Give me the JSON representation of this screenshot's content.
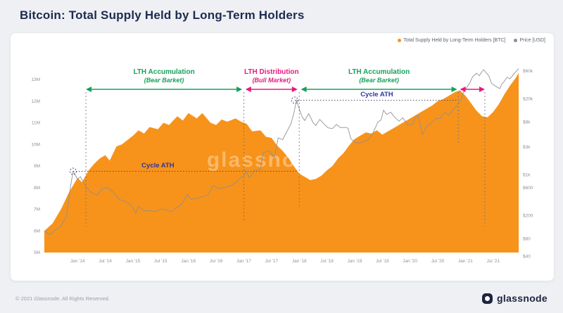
{
  "page": {
    "title": "Bitcoin: Total Supply Held by Long-Term Holders",
    "footer_copyright": "© 2021 Glassnode. All Rights Reserved.",
    "brand": "glassnode",
    "watermark": "glassnode"
  },
  "legend": {
    "items": [
      {
        "label": "Total Supply Held by Long-Term Holders [BTC]",
        "color": "#f7931a"
      },
      {
        "label": "Price [USD]",
        "color": "#8e8e93"
      }
    ]
  },
  "chart_data": {
    "type": "area",
    "title": "Bitcoin: Total Supply Held by Long-Term Holders",
    "watermark": "glassnode",
    "x_range": [
      2013.4,
      2021.96
    ],
    "x_axis": {
      "ticks": [
        {
          "t": 2014.0,
          "label": "Jan '14"
        },
        {
          "t": 2014.5,
          "label": "Jul '14"
        },
        {
          "t": 2015.0,
          "label": "Jan '15"
        },
        {
          "t": 2015.5,
          "label": "Jul '15"
        },
        {
          "t": 2016.0,
          "label": "Jan '16"
        },
        {
          "t": 2016.5,
          "label": "Jul '16"
        },
        {
          "t": 2017.0,
          "label": "Jan '17"
        },
        {
          "t": 2017.5,
          "label": "Jul '17"
        },
        {
          "t": 2018.0,
          "label": "Jan '18"
        },
        {
          "t": 2018.5,
          "label": "Jul '18"
        },
        {
          "t": 2019.0,
          "label": "Jan '19"
        },
        {
          "t": 2019.5,
          "label": "Jul '19"
        },
        {
          "t": 2020.0,
          "label": "Jan '20"
        },
        {
          "t": 2020.5,
          "label": "Jul '20"
        },
        {
          "t": 2021.0,
          "label": "Jan '21"
        },
        {
          "t": 2021.5,
          "label": "Jul '21"
        }
      ]
    },
    "left_axis": {
      "range": [
        5,
        13
      ],
      "unit": "BTC supply (millions)",
      "ticks": [
        {
          "v": 13,
          "label": "13M"
        },
        {
          "v": 12,
          "label": "12M"
        },
        {
          "v": 11,
          "label": "11M"
        },
        {
          "v": 10,
          "label": "10M"
        },
        {
          "v": 9,
          "label": "9M"
        },
        {
          "v": 8,
          "label": "8M"
        },
        {
          "v": 7,
          "label": "7M"
        },
        {
          "v": 6,
          "label": "6M"
        },
        {
          "v": 5,
          "label": "5M"
        }
      ]
    },
    "right_axis": {
      "scale": "log",
      "unit": "USD",
      "ticks": [
        {
          "v": 60000,
          "label": "$60k"
        },
        {
          "v": 20000,
          "label": "$20k"
        },
        {
          "v": 8000,
          "label": "$8k"
        },
        {
          "v": 3000,
          "label": "$3k"
        },
        {
          "v": 1000,
          "label": "$1k"
        },
        {
          "v": 600,
          "label": "$600"
        },
        {
          "v": 200,
          "label": "$200"
        },
        {
          "v": 80,
          "label": "$80"
        },
        {
          "v": 40,
          "label": "$40"
        }
      ]
    },
    "series": [
      {
        "name": "Total Supply Held by Long-Term Holders [BTC]",
        "color": "#f7931a",
        "axis": "left",
        "style": "area",
        "points": [
          [
            2013.4,
            6.0
          ],
          [
            2013.55,
            6.35
          ],
          [
            2013.7,
            7.0
          ],
          [
            2013.85,
            7.8
          ],
          [
            2014.0,
            8.45
          ],
          [
            2014.08,
            8.25
          ],
          [
            2014.2,
            8.8
          ],
          [
            2014.3,
            9.1
          ],
          [
            2014.4,
            9.35
          ],
          [
            2014.5,
            9.5
          ],
          [
            2014.58,
            9.25
          ],
          [
            2014.7,
            9.9
          ],
          [
            2014.8,
            10.0
          ],
          [
            2014.9,
            10.2
          ],
          [
            2015.0,
            10.4
          ],
          [
            2015.1,
            10.65
          ],
          [
            2015.2,
            10.5
          ],
          [
            2015.3,
            10.8
          ],
          [
            2015.45,
            10.7
          ],
          [
            2015.55,
            11.0
          ],
          [
            2015.65,
            10.9
          ],
          [
            2015.8,
            11.3
          ],
          [
            2015.9,
            11.1
          ],
          [
            2016.0,
            11.45
          ],
          [
            2016.15,
            11.2
          ],
          [
            2016.25,
            11.45
          ],
          [
            2016.4,
            11.0
          ],
          [
            2016.5,
            10.9
          ],
          [
            2016.6,
            11.15
          ],
          [
            2016.7,
            11.05
          ],
          [
            2016.85,
            11.2
          ],
          [
            2016.95,
            11.05
          ],
          [
            2017.05,
            10.95
          ],
          [
            2017.15,
            10.6
          ],
          [
            2017.3,
            10.65
          ],
          [
            2017.4,
            10.35
          ],
          [
            2017.5,
            10.3
          ],
          [
            2017.6,
            9.95
          ],
          [
            2017.7,
            9.7
          ],
          [
            2017.8,
            9.4
          ],
          [
            2017.9,
            9.0
          ],
          [
            2018.0,
            8.65
          ],
          [
            2018.1,
            8.5
          ],
          [
            2018.2,
            8.35
          ],
          [
            2018.3,
            8.4
          ],
          [
            2018.4,
            8.55
          ],
          [
            2018.5,
            8.8
          ],
          [
            2018.6,
            9.0
          ],
          [
            2018.7,
            9.35
          ],
          [
            2018.8,
            9.6
          ],
          [
            2018.9,
            9.95
          ],
          [
            2019.0,
            10.25
          ],
          [
            2019.1,
            10.4
          ],
          [
            2019.2,
            10.55
          ],
          [
            2019.3,
            10.5
          ],
          [
            2019.4,
            10.65
          ],
          [
            2019.5,
            10.45
          ],
          [
            2019.6,
            10.6
          ],
          [
            2019.7,
            10.75
          ],
          [
            2019.8,
            10.9
          ],
          [
            2019.9,
            11.05
          ],
          [
            2020.0,
            11.2
          ],
          [
            2020.1,
            11.35
          ],
          [
            2020.2,
            11.5
          ],
          [
            2020.3,
            11.65
          ],
          [
            2020.4,
            11.8
          ],
          [
            2020.5,
            12.0
          ],
          [
            2020.6,
            12.1
          ],
          [
            2020.7,
            12.25
          ],
          [
            2020.8,
            12.4
          ],
          [
            2020.9,
            12.5
          ],
          [
            2021.0,
            12.25
          ],
          [
            2021.1,
            11.9
          ],
          [
            2021.2,
            11.55
          ],
          [
            2021.3,
            11.3
          ],
          [
            2021.4,
            11.25
          ],
          [
            2021.5,
            11.5
          ],
          [
            2021.6,
            11.85
          ],
          [
            2021.7,
            12.3
          ],
          [
            2021.8,
            12.7
          ],
          [
            2021.9,
            13.05
          ],
          [
            2021.96,
            13.3
          ]
        ]
      },
      {
        "name": "Price [USD]",
        "color": "#8e8e93",
        "axis": "right",
        "style": "line",
        "points": [
          [
            2013.4,
            110
          ],
          [
            2013.5,
            95
          ],
          [
            2013.6,
            115
          ],
          [
            2013.7,
            130
          ],
          [
            2013.8,
            200
          ],
          [
            2013.88,
            700
          ],
          [
            2013.92,
            1150
          ],
          [
            2014.0,
            840
          ],
          [
            2014.05,
            930
          ],
          [
            2014.15,
            620
          ],
          [
            2014.25,
            500
          ],
          [
            2014.35,
            450
          ],
          [
            2014.45,
            590
          ],
          [
            2014.55,
            600
          ],
          [
            2014.65,
            500
          ],
          [
            2014.75,
            380
          ],
          [
            2014.85,
            350
          ],
          [
            2014.95,
            320
          ],
          [
            2015.05,
            220
          ],
          [
            2015.1,
            290
          ],
          [
            2015.2,
            240
          ],
          [
            2015.3,
            245
          ],
          [
            2015.4,
            235
          ],
          [
            2015.5,
            260
          ],
          [
            2015.6,
            250
          ],
          [
            2015.7,
            235
          ],
          [
            2015.8,
            280
          ],
          [
            2015.9,
            330
          ],
          [
            2015.98,
            460
          ],
          [
            2016.05,
            380
          ],
          [
            2016.15,
            400
          ],
          [
            2016.25,
            420
          ],
          [
            2016.35,
            450
          ],
          [
            2016.45,
            660
          ],
          [
            2016.55,
            580
          ],
          [
            2016.65,
            610
          ],
          [
            2016.75,
            640
          ],
          [
            2016.85,
            730
          ],
          [
            2016.95,
            900
          ],
          [
            2017.0,
            970
          ],
          [
            2017.05,
            1130
          ],
          [
            2017.1,
            900
          ],
          [
            2017.2,
            1190
          ],
          [
            2017.3,
            1250
          ],
          [
            2017.35,
            2400
          ],
          [
            2017.45,
            2600
          ],
          [
            2017.5,
            2300
          ],
          [
            2017.55,
            2000
          ],
          [
            2017.62,
            4300
          ],
          [
            2017.7,
            4000
          ],
          [
            2017.78,
            5600
          ],
          [
            2017.85,
            7500
          ],
          [
            2017.9,
            11000
          ],
          [
            2017.95,
            19000
          ],
          [
            2018.0,
            13500
          ],
          [
            2018.05,
            10000
          ],
          [
            2018.1,
            8500
          ],
          [
            2018.17,
            11200
          ],
          [
            2018.25,
            7800
          ],
          [
            2018.3,
            7000
          ],
          [
            2018.37,
            8900
          ],
          [
            2018.45,
            7400
          ],
          [
            2018.52,
            6400
          ],
          [
            2018.6,
            6200
          ],
          [
            2018.67,
            7300
          ],
          [
            2018.75,
            6400
          ],
          [
            2018.82,
            6500
          ],
          [
            2018.88,
            6300
          ],
          [
            2018.93,
            4200
          ],
          [
            2019.0,
            3600
          ],
          [
            2019.08,
            3500
          ],
          [
            2019.15,
            3700
          ],
          [
            2019.25,
            4000
          ],
          [
            2019.33,
            5200
          ],
          [
            2019.42,
            8000
          ],
          [
            2019.48,
            8800
          ],
          [
            2019.52,
            12800
          ],
          [
            2019.58,
            10800
          ],
          [
            2019.65,
            11800
          ],
          [
            2019.72,
            9800
          ],
          [
            2019.8,
            8300
          ],
          [
            2019.87,
            9500
          ],
          [
            2019.95,
            7300
          ],
          [
            2020.03,
            7200
          ],
          [
            2020.1,
            9500
          ],
          [
            2020.15,
            10300
          ],
          [
            2020.22,
            4900
          ],
          [
            2020.3,
            6800
          ],
          [
            2020.37,
            7500
          ],
          [
            2020.45,
            9100
          ],
          [
            2020.55,
            9300
          ],
          [
            2020.62,
            11700
          ],
          [
            2020.7,
            10700
          ],
          [
            2020.78,
            13000
          ],
          [
            2020.85,
            15800
          ],
          [
            2020.92,
            19200
          ],
          [
            2020.97,
            27000
          ],
          [
            2021.03,
            32000
          ],
          [
            2021.08,
            38000
          ],
          [
            2021.13,
            48000
          ],
          [
            2021.2,
            55000
          ],
          [
            2021.25,
            50000
          ],
          [
            2021.3,
            59000
          ],
          [
            2021.33,
            63000
          ],
          [
            2021.38,
            55000
          ],
          [
            2021.42,
            50000
          ],
          [
            2021.47,
            37000
          ],
          [
            2021.52,
            34000
          ],
          [
            2021.57,
            32000
          ],
          [
            2021.62,
            30000
          ],
          [
            2021.65,
            35000
          ],
          [
            2021.7,
            40000
          ],
          [
            2021.75,
            47000
          ],
          [
            2021.8,
            44000
          ],
          [
            2021.85,
            50000
          ],
          [
            2021.9,
            57000
          ],
          [
            2021.96,
            66000
          ]
        ]
      }
    ],
    "annotations": {
      "phase_arrows": [
        {
          "from": 2014.15,
          "to": 2016.97,
          "color": "#17a15b",
          "line1": "LTH Accumulation",
          "line2": "(Bear Barket)"
        },
        {
          "from": 2017.03,
          "to": 2017.97,
          "color": "#e6197e",
          "line1": "LTH Distribution",
          "line2": "(Bull Market)"
        },
        {
          "from": 2018.03,
          "to": 2020.85,
          "color": "#17a15b",
          "line1": "LTH Accumulation",
          "line2": "(Bear Barket)"
        },
        {
          "from": 2020.9,
          "to": 2021.35,
          "color": "#e6197e",
          "line1": "",
          "line2": ""
        }
      ],
      "cycle_ath_color": "#2e35a3",
      "guide_color": "#4a4e68",
      "cycle_ath": [
        {
          "label": "Cycle ATH",
          "price": 1150,
          "peak_t": 2013.92,
          "line_to": 2017.98,
          "label_t": 2015.45
        },
        {
          "label": "Cycle ATH",
          "price": 19000,
          "peak_t": 2017.92,
          "line_to": 2020.87,
          "label_t": 2019.4
        }
      ],
      "vertical_guides": [
        {
          "t": 2014.15,
          "down_to_supply": 6.2
        },
        {
          "t": 2017.0,
          "down_to_supply": 6.45
        },
        {
          "t": 2018.0,
          "down_to_supply": 7.1
        },
        {
          "t": 2020.87,
          "down_to_supply": 10.0
        },
        {
          "t": 2021.35,
          "down_to_supply": 6.2
        }
      ]
    }
  }
}
